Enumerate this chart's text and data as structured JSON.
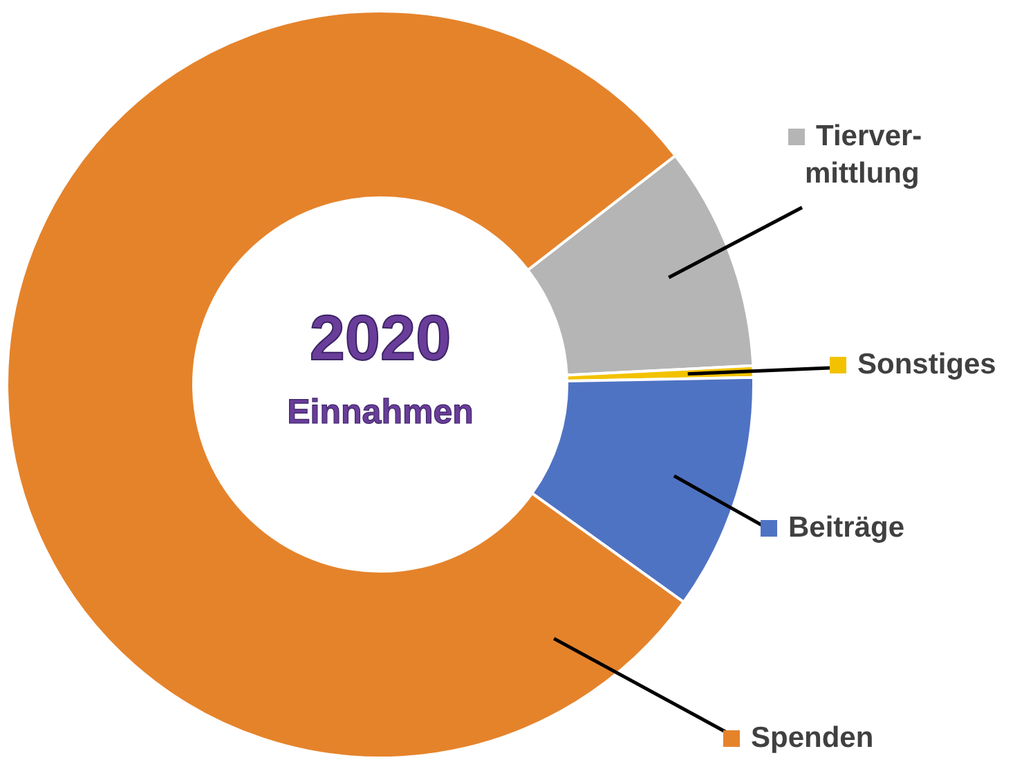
{
  "chart_data": {
    "type": "donut",
    "title": "2020",
    "subtitle": "Einnahmen",
    "categories": [
      "Tierver-\nmittlung",
      "Sonstiges",
      "Beiträge",
      "Spenden"
    ],
    "values": [
      9.7,
      0.5,
      10.2,
      79.6
    ],
    "colors": [
      "#b5b5b5",
      "#f2c200",
      "#4f73c3",
      "#e5832b"
    ],
    "legend": "right"
  }
}
